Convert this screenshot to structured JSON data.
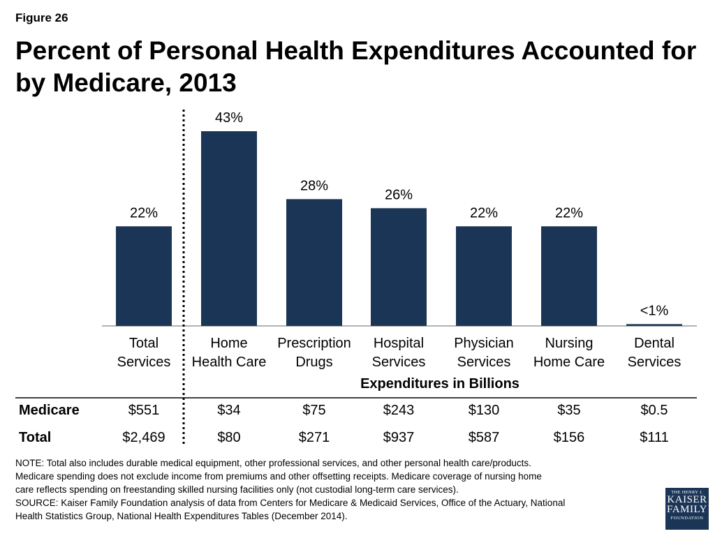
{
  "figure_label": "Figure 26",
  "title": "Percent of Personal Health Expenditures Accounted for by Medicare, 2013",
  "chart_data": {
    "type": "bar",
    "categories": [
      [
        "Total",
        "Services"
      ],
      [
        "Home",
        "Health Care"
      ],
      [
        "Prescription",
        "Drugs"
      ],
      [
        "Hospital",
        "Services"
      ],
      [
        "Physician",
        "Services"
      ],
      [
        "Nursing",
        "Home Care"
      ],
      [
        "Dental",
        "Services"
      ]
    ],
    "values": [
      22,
      43,
      28,
      26,
      22,
      22,
      0.4
    ],
    "value_labels": [
      "22%",
      "43%",
      "28%",
      "26%",
      "22%",
      "22%",
      "<1%"
    ],
    "ylim": [
      0,
      43
    ],
    "bar_color": "#1b3557",
    "grid": false,
    "table": {
      "header": "Expenditures in Billions",
      "rows": [
        {
          "label": "Medicare",
          "values": [
            "$551",
            "$34",
            "$75",
            "$243",
            "$130",
            "$35",
            "$0.5"
          ]
        },
        {
          "label": "Total",
          "values": [
            "$2,469",
            "$80",
            "$271",
            "$937",
            "$587",
            "$156",
            "$111"
          ]
        }
      ]
    }
  },
  "notes": [
    "NOTE: Total also includes durable medical equipment, other professional services, and other personal health care/products.",
    "Medicare spending does not exclude income from premiums and other offsetting receipts.  Medicare coverage of nursing home",
    "care reflects spending on freestanding skilled nursing facilities only (not custodial long-term care services).",
    "SOURCE: Kaiser Family Foundation analysis of data from Centers for Medicare & Medicaid Services, Office of the Actuary, National",
    "Health Statistics Group, National Health Expenditures Tables (December 2014)."
  ],
  "logo": {
    "line1": "THE HENRY J.",
    "line2": "KAISER",
    "line3": "FAMILY",
    "line4": "FOUNDATION"
  }
}
